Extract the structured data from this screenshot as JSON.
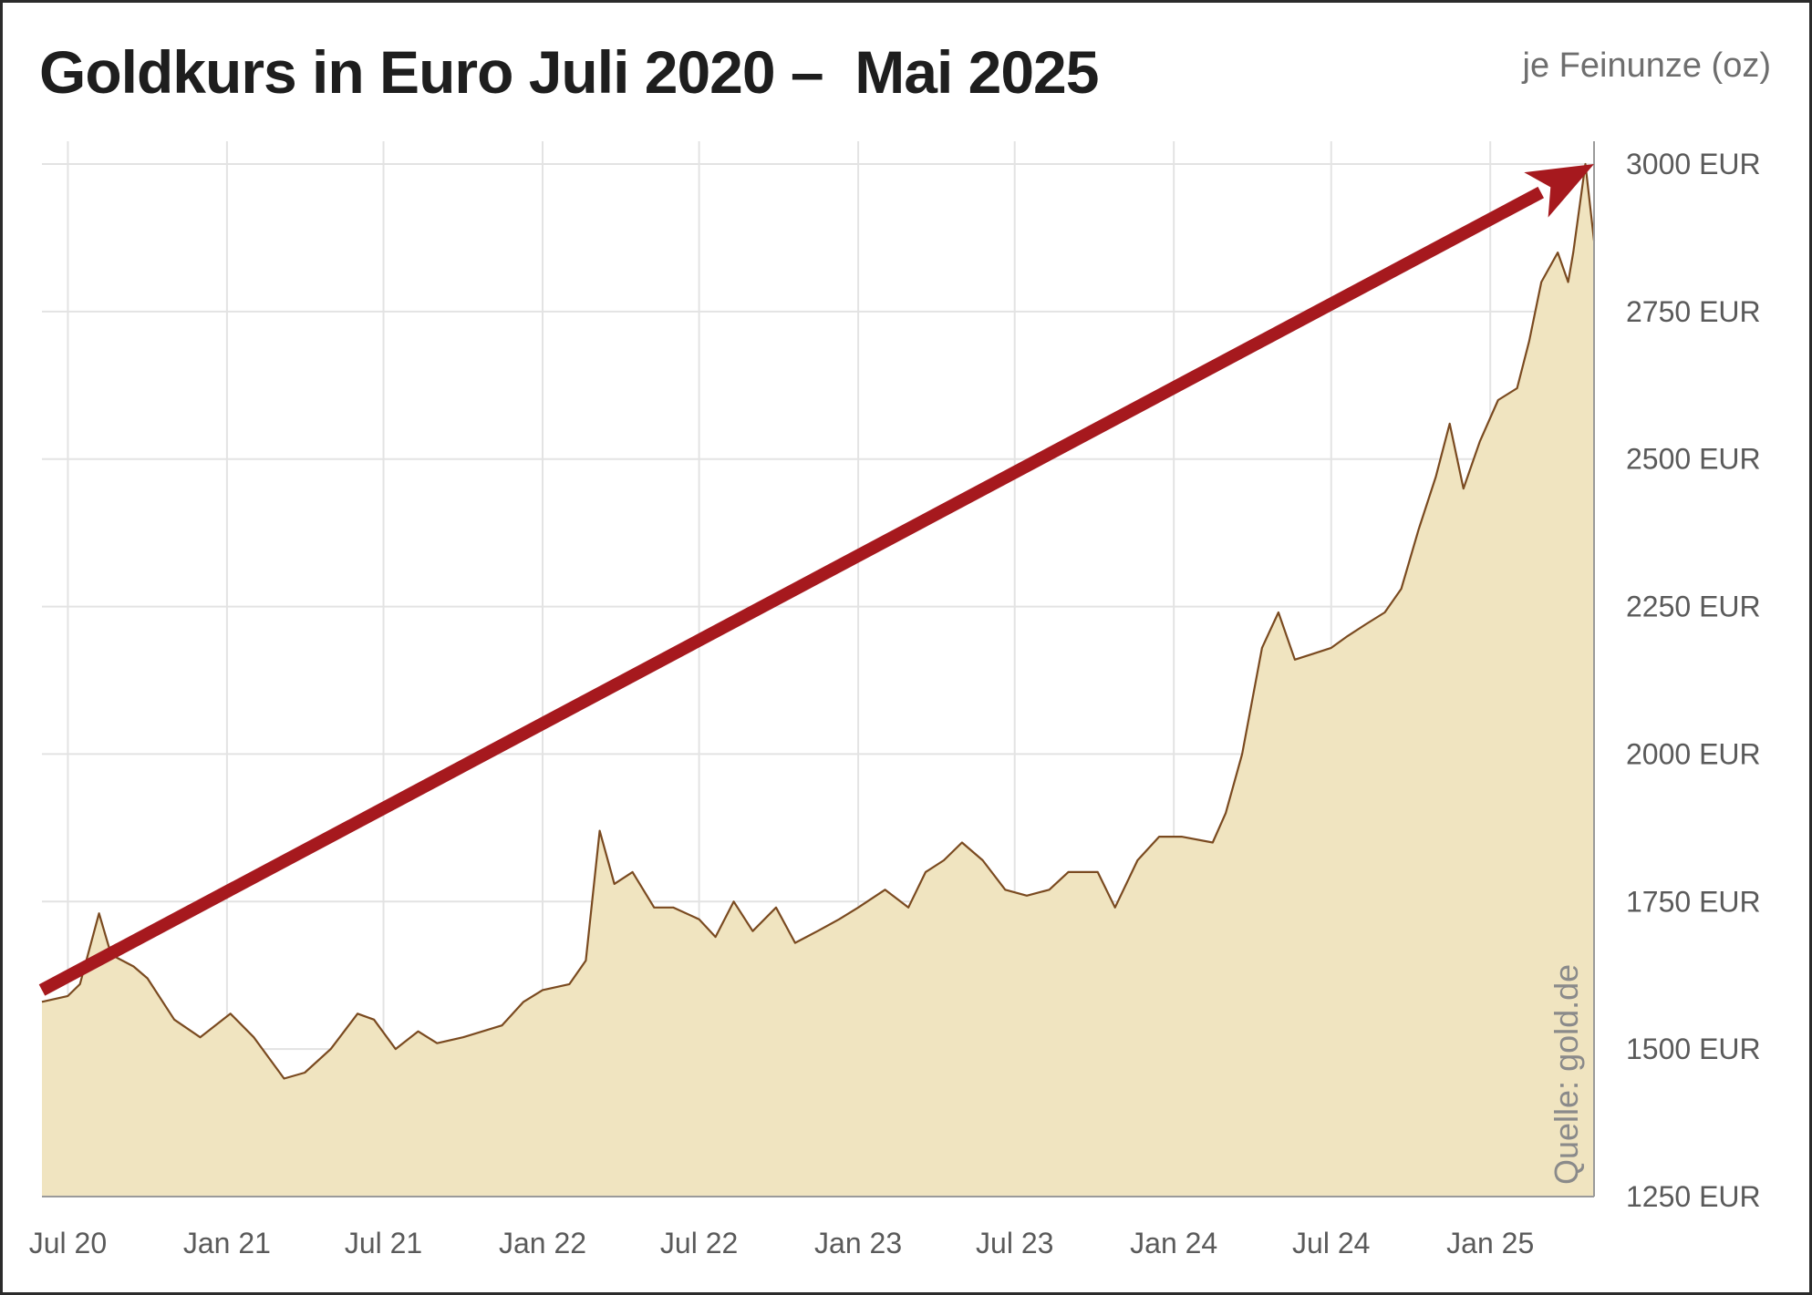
{
  "title": "Goldkurs in Euro Juli 2020 –  Mai 2025",
  "unit_label": "je Feinunze (oz)",
  "source": "Quelle: gold.de",
  "colors": {
    "fill": "#f0e4c0",
    "line": "#7a4a20",
    "grid": "#e3e3e3",
    "arrow": "#a6191e"
  },
  "chart_data": {
    "type": "area",
    "title": "Goldkurs in Euro Juli 2020 –  Mai 2025",
    "ylabel": "je Feinunze (oz)",
    "ylim": [
      1250,
      3000
    ],
    "y_ticks": [
      1250,
      1500,
      1750,
      2000,
      2250,
      2500,
      2750,
      3000
    ],
    "y_tick_labels": [
      "1250 EUR",
      "1500 EUR",
      "1750 EUR",
      "2000 EUR",
      "2250 EUR",
      "2500 EUR",
      "2750 EUR",
      "3000 EUR"
    ],
    "x_ticks": [
      "2020-07",
      "2021-01",
      "2021-07",
      "2022-01",
      "2022-07",
      "2023-01",
      "2023-07",
      "2024-01",
      "2024-07",
      "2025-01"
    ],
    "x_tick_labels": [
      "Jul 20",
      "Jan 21",
      "Jul 21",
      "Jan 22",
      "Jul 22",
      "Jan 23",
      "Jul 23",
      "Jan 24",
      "Jul 24",
      "Jan 25"
    ],
    "xlim": [
      "2020-06-01",
      "2025-05-01"
    ],
    "grid": true,
    "series": [
      {
        "x": [
          "2020-06-01",
          "2020-07-01",
          "2020-07-15",
          "2020-08-06",
          "2020-08-20",
          "2020-09-15",
          "2020-10-01",
          "2020-11-01",
          "2020-12-01",
          "2021-01-05",
          "2021-02-01",
          "2021-03-08",
          "2021-04-01",
          "2021-05-01",
          "2021-06-01",
          "2021-06-20",
          "2021-07-15",
          "2021-08-10",
          "2021-09-01",
          "2021-10-01",
          "2021-11-15",
          "2021-12-10",
          "2022-01-01",
          "2022-02-01",
          "2022-02-20",
          "2022-03-08",
          "2022-03-25",
          "2022-04-15",
          "2022-05-10",
          "2022-06-01",
          "2022-07-01",
          "2022-07-20",
          "2022-08-10",
          "2022-09-01",
          "2022-09-28",
          "2022-10-20",
          "2022-11-15",
          "2022-12-10",
          "2023-01-01",
          "2023-02-01",
          "2023-02-28",
          "2023-03-20",
          "2023-04-10",
          "2023-05-01",
          "2023-05-25",
          "2023-06-20",
          "2023-07-15",
          "2023-08-10",
          "2023-09-01",
          "2023-10-05",
          "2023-10-25",
          "2023-11-20",
          "2023-12-15",
          "2024-01-10",
          "2024-02-15",
          "2024-03-01",
          "2024-03-20",
          "2024-04-12",
          "2024-05-01",
          "2024-05-20",
          "2024-06-10",
          "2024-07-01",
          "2024-07-20",
          "2024-08-10",
          "2024-09-01",
          "2024-09-20",
          "2024-10-10",
          "2024-10-30",
          "2024-11-15",
          "2024-12-01",
          "2024-12-20",
          "2025-01-10",
          "2025-02-01",
          "2025-02-15",
          "2025-03-01",
          "2025-03-20",
          "2025-04-01",
          "2025-04-07",
          "2025-04-21",
          "2025-05-01"
        ],
        "y": [
          1580,
          1590,
          1610,
          1730,
          1660,
          1640,
          1620,
          1550,
          1520,
          1560,
          1520,
          1450,
          1460,
          1500,
          1560,
          1550,
          1500,
          1530,
          1510,
          1520,
          1540,
          1580,
          1600,
          1610,
          1650,
          1870,
          1780,
          1800,
          1740,
          1740,
          1720,
          1690,
          1750,
          1700,
          1740,
          1680,
          1700,
          1720,
          1740,
          1770,
          1740,
          1800,
          1820,
          1850,
          1820,
          1770,
          1760,
          1770,
          1800,
          1800,
          1740,
          1820,
          1860,
          1860,
          1850,
          1900,
          2000,
          2180,
          2240,
          2160,
          2170,
          2180,
          2200,
          2220,
          2240,
          2280,
          2380,
          2470,
          2560,
          2450,
          2530,
          2600,
          2620,
          2700,
          2800,
          2850,
          2800,
          2850,
          3000,
          2870
        ]
      }
    ],
    "annotations": [
      {
        "type": "trend-arrow",
        "from": [
          "2020-06-01",
          1600
        ],
        "to": [
          "2025-05-01",
          3000
        ]
      }
    ]
  }
}
